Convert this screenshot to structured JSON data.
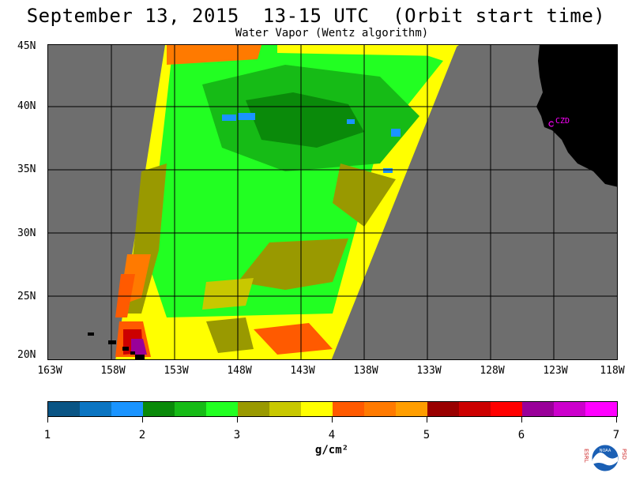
{
  "title": "September 13, 2015  13-15 UTC  (Orbit start time)",
  "subtitle": "Water Vapor (Wentz algorithm)",
  "map": {
    "lat_labels": [
      "45N",
      "40N",
      "35N",
      "30N",
      "25N",
      "20N"
    ],
    "lon_labels": [
      "163W",
      "158W",
      "153W",
      "148W",
      "143W",
      "138W",
      "133W",
      "128W",
      "123W",
      "118W"
    ],
    "station_label": "CZD",
    "colors": {
      "no_data": "#6e6e6e",
      "land": "#000000",
      "grid": "#000000",
      "station": "#ff00ff"
    }
  },
  "colorbar": {
    "tick_labels": [
      "1",
      "2",
      "3",
      "4",
      "5",
      "6",
      "7"
    ],
    "units": "g/cm²",
    "colors": [
      "#0a5585",
      "#0b75c2",
      "#1a94ff",
      "#0a8a0a",
      "#16bb16",
      "#22ff22",
      "#999900",
      "#c8c800",
      "#ffff00",
      "#ff5a00",
      "#ff7a00",
      "#ff9e00",
      "#990000",
      "#cc0000",
      "#ff0000",
      "#990099",
      "#cc00cc",
      "#ff00ff"
    ]
  },
  "logo": {
    "left_letters": "ESRL",
    "right_letters": "PSD",
    "center_text": "NOAA"
  }
}
